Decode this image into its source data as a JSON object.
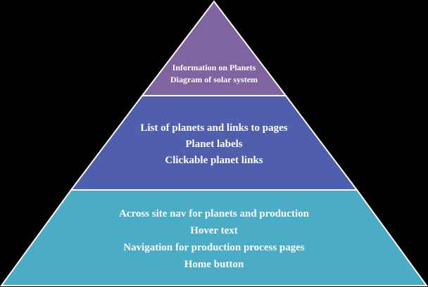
{
  "colors": {
    "background": "#000000",
    "tier_top_fill": "#8064a2",
    "tier_middle_fill": "#4f5fae",
    "tier_bottom_fill": "#4bacc6",
    "tier_border": "#ffffff",
    "text": "#ffffff"
  },
  "pyramid": {
    "top_tier": {
      "lines": [
        "Information on Planets",
        "Diagram of solar system"
      ]
    },
    "middle_tier": {
      "lines": [
        "List of planets and links to pages",
        "Planet labels",
        "Clickable planet links"
      ]
    },
    "bottom_tier": {
      "lines": [
        "Across site nav for planets and production",
        "Hover text",
        "Navigation for production process pages",
        "Home button"
      ]
    }
  }
}
